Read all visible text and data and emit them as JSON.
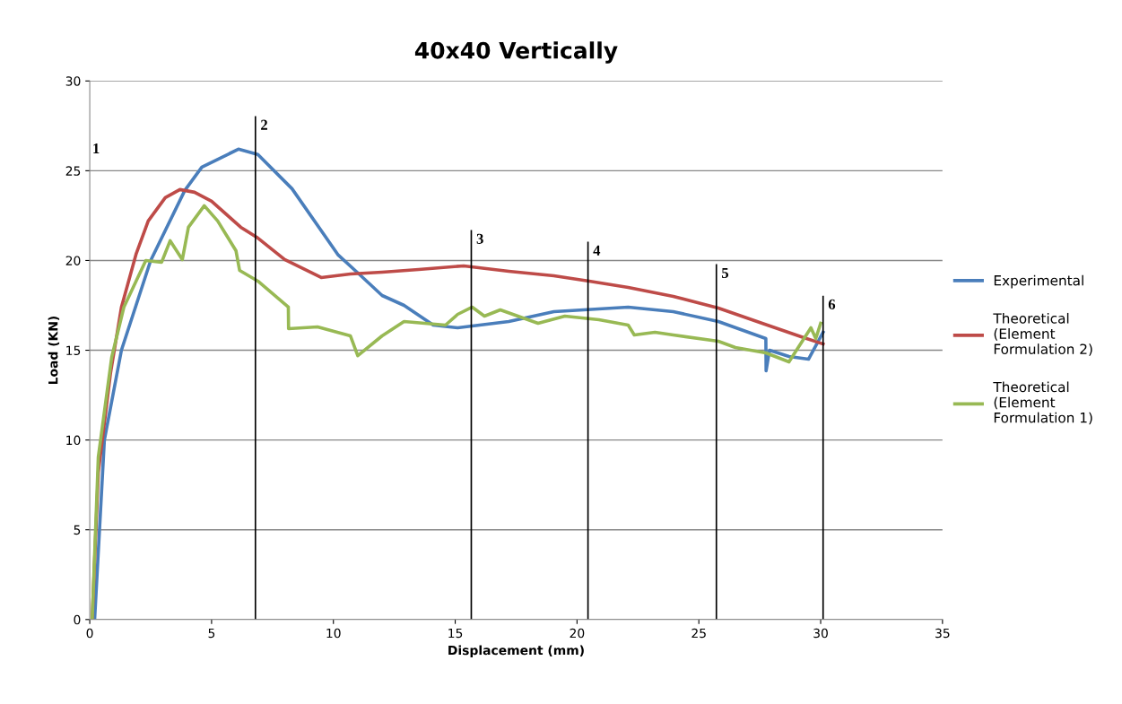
{
  "chart_data": {
    "type": "line",
    "title": "40x40 Vertically",
    "xlabel": "Displacement (mm)",
    "ylabel": "Load (KN)",
    "xlim": [
      0,
      35
    ],
    "xticks": [
      0,
      5,
      10,
      15,
      20,
      25,
      30,
      35
    ],
    "ylim": [
      0,
      30
    ],
    "yticks": [
      0,
      5,
      10,
      15,
      20,
      25,
      30
    ],
    "grid": "y",
    "legend": "right",
    "marker": "none",
    "line_style": "solid",
    "series": [
      {
        "name": "Experimental",
        "color": "#4a7ebb",
        "x": [
          0.2,
          0.6,
          1.3,
          2.5,
          3.9,
          4.6,
          6.1,
          6.9,
          8.3,
          10.2,
          11.05,
          12.0,
          12.9,
          14.1,
          15.1,
          17.2,
          19.05,
          22.1,
          23.95,
          25.8,
          27.75,
          27.76,
          27.9,
          28.7,
          29.5,
          30.1
        ],
        "values": [
          0,
          10,
          15,
          20,
          23.9,
          25.2,
          26.2,
          25.9,
          24,
          20.3,
          19.25,
          18.05,
          17.5,
          16.4,
          16.25,
          16.6,
          17.15,
          17.4,
          17.15,
          16.6,
          15.65,
          13.85,
          15.0,
          14.65,
          14.5,
          16.0
        ]
      },
      {
        "name": "Theoretical (Element Formulation 2)",
        "color": "#be4b48",
        "x": [
          0.1,
          0.35,
          0.85,
          1.3,
          1.9,
          2.4,
          3.1,
          3.7,
          4.3,
          5.0,
          6.2,
          6.85,
          8.0,
          9.5,
          10.7,
          12.0,
          13.5,
          15.35,
          17.2,
          19.05,
          20.5,
          22.1,
          23.95,
          25.8,
          27.6,
          29.2,
          30.1
        ],
        "values": [
          0,
          8.2,
          13.7,
          17.4,
          20.35,
          22.2,
          23.5,
          23.95,
          23.8,
          23.3,
          21.85,
          21.3,
          20.05,
          19.05,
          19.25,
          19.35,
          19.5,
          19.7,
          19.4,
          19.15,
          18.85,
          18.5,
          18,
          17.35,
          16.5,
          15.75,
          15.35
        ]
      },
      {
        "name": "Theoretical (Element Formulation 1)",
        "color": "#98b954",
        "x": [
          0.1,
          0.35,
          0.9,
          1.4,
          2.3,
          2.95,
          3.3,
          3.8,
          4.05,
          4.7,
          5.25,
          6.0,
          6.15,
          6.9,
          8.15,
          8.16,
          9.35,
          10.7,
          11.0,
          12.0,
          12.9,
          14.6,
          15.1,
          15.7,
          16.2,
          16.85,
          18.4,
          19.5,
          20.9,
          22.1,
          22.35,
          23.2,
          23.95,
          25.8,
          26.5,
          27.75,
          28.7,
          29.6,
          29.8,
          30.0
        ],
        "values": [
          0,
          9.05,
          14.6,
          17.4,
          20,
          19.9,
          21.1,
          20.05,
          21.85,
          23.05,
          22.2,
          20.55,
          19.45,
          18.85,
          17.4,
          16.2,
          16.3,
          15.8,
          14.7,
          15.8,
          16.6,
          16.4,
          17.0,
          17.4,
          16.9,
          17.25,
          16.5,
          16.9,
          16.7,
          16.4,
          15.85,
          16.0,
          15.85,
          15.5,
          15.15,
          14.85,
          14.35,
          16.25,
          15.65,
          16.5
        ]
      }
    ],
    "ref_lines": [
      {
        "axis": "x",
        "value": 6.8,
        "color": "#000000"
      },
      {
        "axis": "x",
        "value": 15.66,
        "color": "#000000"
      },
      {
        "axis": "x",
        "value": 20.45,
        "color": "#000000"
      },
      {
        "axis": "x",
        "value": 25.72,
        "color": "#000000"
      },
      {
        "axis": "x",
        "value": 30.1,
        "color": "#000000"
      }
    ],
    "annotations": [
      "1",
      {
        "text": "2",
        "x": 6.8,
        "y": 28
      },
      {
        "text": "3",
        "x": 15.66,
        "y": 21.65
      },
      {
        "text": "4",
        "x": 20.45,
        "y": 21
      },
      {
        "text": "5",
        "x": 25.72,
        "y": 19.75
      },
      {
        "text": "6",
        "x": 30.1,
        "y": 18
      }
    ]
  }
}
